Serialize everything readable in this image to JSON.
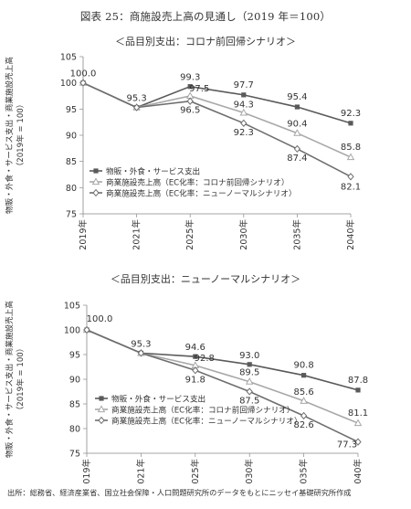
{
  "title": "図表 25：商施設売上高の見通し（2019 年＝100）",
  "source": "出所：総務省、経済産業省、国立社会保障・人口問題研究所のデータをもとにニッセイ基礎研究所作成",
  "chart_data": [
    {
      "type": "line",
      "title": "＜品目別支出：コロナ前回帰シナリオ＞",
      "ylabel": "物販・外食・サービス支出・商業施設売上高\n（2019年 = 100）",
      "ylim": [
        75,
        105
      ],
      "yticks": [
        75,
        80,
        85,
        90,
        95,
        100,
        105
      ],
      "x": [
        "2019年",
        "2021年",
        "2025年",
        "2030年",
        "2035年",
        "2040年"
      ],
      "legend_position": "lower-left",
      "series": [
        {
          "name": "物販・外食・サービス支出",
          "values": [
            100.0,
            95.3,
            99.3,
            97.7,
            95.4,
            92.3
          ],
          "color": "#5a5a5a",
          "marker": "square"
        },
        {
          "name": "商業施設売上高（EC化率：コロナ前回帰シナリオ）",
          "values": [
            100.0,
            95.3,
            97.5,
            94.3,
            90.4,
            85.8
          ],
          "color": "#a8a8a8",
          "marker": "triangle"
        },
        {
          "name": "商業施設売上高（EC化率：ニューノーマルシナリオ）",
          "values": [
            100.0,
            95.3,
            96.5,
            92.3,
            87.4,
            82.1
          ],
          "color": "#6e6e6e",
          "marker": "diamond"
        }
      ],
      "data_labels": [
        [
          "100.0",
          "95.3",
          "99.3",
          "97.7",
          "95.4",
          "92.3"
        ],
        [
          "",
          "",
          "97.5",
          "94.3",
          "90.4",
          "85.8"
        ],
        [
          "",
          "",
          "96.5",
          "92.3",
          "87.4",
          "82.1"
        ]
      ]
    },
    {
      "type": "line",
      "title": "＜品目別支出：ニューノーマルシナリオ＞",
      "ylabel": "物販・外食・サービス支出・商業施設売上高\n（2019年 = 100）",
      "ylim": [
        75,
        105
      ],
      "yticks": [
        75,
        80,
        85,
        90,
        95,
        100,
        105
      ],
      "x": [
        "2019年",
        "2021年",
        "2025年",
        "2030年",
        "2035年",
        "2040年"
      ],
      "legend_position": "lower-left",
      "series": [
        {
          "name": "物販・外食・サービス支出",
          "values": [
            100.0,
            95.3,
            94.6,
            93.0,
            90.8,
            87.8
          ],
          "color": "#5a5a5a",
          "marker": "square"
        },
        {
          "name": "商業施設売上高（EC化率：コロナ前回帰シナリオ）",
          "values": [
            100.0,
            95.3,
            92.8,
            89.5,
            85.6,
            81.1
          ],
          "color": "#a8a8a8",
          "marker": "triangle"
        },
        {
          "name": "商業施設売上高（EC化率：ニューノーマルシナリオ）",
          "values": [
            100.0,
            95.3,
            91.8,
            87.5,
            82.6,
            77.3
          ],
          "color": "#6e6e6e",
          "marker": "diamond"
        }
      ],
      "data_labels": [
        [
          "100.0",
          "95.3",
          "94.6",
          "93.0",
          "90.8",
          "87.8"
        ],
        [
          "",
          "",
          "92.8",
          "89.5",
          "85.6",
          "81.1"
        ],
        [
          "",
          "",
          "91.8",
          "87.5",
          "82.6",
          "77.3"
        ]
      ]
    }
  ]
}
